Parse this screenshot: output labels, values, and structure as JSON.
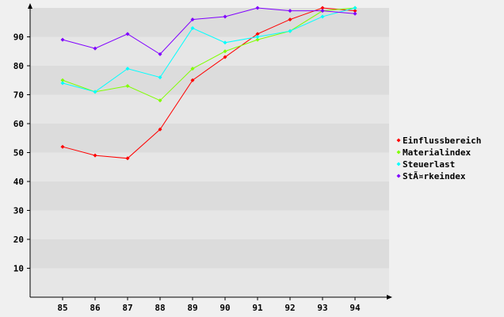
{
  "chart_data": {
    "type": "line",
    "title": "",
    "xlabel": "",
    "ylabel": "",
    "x": [
      "85",
      "86",
      "87",
      "88",
      "89",
      "90",
      "91",
      "92",
      "93",
      "94"
    ],
    "yticks": [
      "10",
      "20",
      "30",
      "40",
      "50",
      "60",
      "70",
      "80",
      "90"
    ],
    "ylim": [
      0,
      100
    ],
    "grid": "horizontal-bands",
    "legend_position": "right",
    "series": [
      {
        "name": "Einflussbereich",
        "color": "#ff0000",
        "values": [
          52,
          49,
          48,
          58,
          75,
          83,
          91,
          96,
          100,
          99
        ]
      },
      {
        "name": "Materialindex",
        "color": "#80ff00",
        "values": [
          75,
          71,
          73,
          68,
          79,
          85,
          89,
          92,
          99,
          100
        ]
      },
      {
        "name": "Steuerlast",
        "color": "#00ffff",
        "values": [
          74,
          71,
          79,
          76,
          93,
          88,
          90,
          92,
          97,
          100
        ]
      },
      {
        "name": "StÃ¤rkeindex",
        "color": "#8000ff",
        "values": [
          89,
          86,
          91,
          84,
          96,
          97,
          100,
          99,
          99,
          98
        ]
      }
    ]
  }
}
